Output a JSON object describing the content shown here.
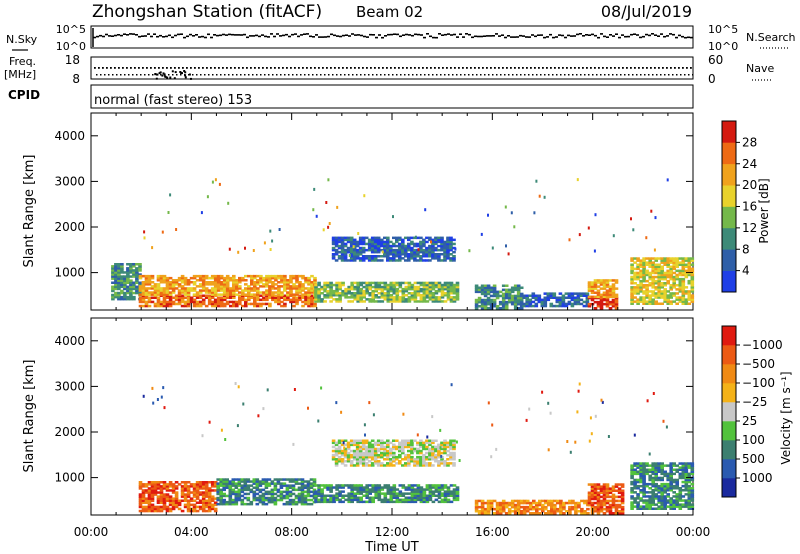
{
  "header": {
    "station": "Zhongshan Station (fitACF)",
    "beam": "Beam 02",
    "date": "08/Jul/2019"
  },
  "status_panels": {
    "nsky_label": "N.Sky",
    "nsky_ticks": [
      "10^5",
      "10^0"
    ],
    "nsearch_label": "N.Search",
    "nsearch_ticks": [
      "10^5",
      "10^0"
    ],
    "freq_label": "Freq.",
    "freq_unit": "[MHz]",
    "freq_ticks": [
      "18",
      "8"
    ],
    "nave_label": "Nave",
    "nave_ticks": [
      "60",
      "0"
    ],
    "cpid_label": "CPID",
    "cpid_text": "normal (fast stereo) 153"
  },
  "chart_data": [
    {
      "type": "heatmap",
      "title": "",
      "xlabel": "",
      "ylabel": "Slant Range [km]",
      "xlim_hours": [
        0,
        24
      ],
      "ylim_km": [
        180,
        4500
      ],
      "yticks": [
        1000,
        2000,
        3000,
        4000
      ],
      "colorbar": {
        "label": "Power [dB]",
        "ticks": [
          "4",
          "8",
          "12",
          "16",
          "20",
          "24",
          "28"
        ],
        "colors": [
          "#1f3fe6",
          "#2f5fa8",
          "#3d8a78",
          "#74b84a",
          "#e8d22c",
          "#f0a21c",
          "#ee6a14",
          "#d41a10"
        ]
      },
      "data_regions": [
        {
          "t0": 0.8,
          "t1": 1.9,
          "r0": 400,
          "r1": 1200,
          "level": 2
        },
        {
          "t0": 1.9,
          "t1": 8.9,
          "r0": 250,
          "r1": 500,
          "level": 6
        },
        {
          "t0": 1.9,
          "t1": 8.9,
          "r0": 500,
          "r1": 950,
          "level": 5
        },
        {
          "t0": 8.9,
          "t1": 14.6,
          "r0": 350,
          "r1": 800,
          "level": 3
        },
        {
          "t0": 9.6,
          "t1": 14.5,
          "r0": 1250,
          "r1": 1750,
          "level": 1
        },
        {
          "t0": 15.3,
          "t1": 17.2,
          "r0": 200,
          "r1": 700,
          "level": 2
        },
        {
          "t0": 17.2,
          "t1": 19.8,
          "r0": 250,
          "r1": 550,
          "level": 1
        },
        {
          "t0": 19.8,
          "t1": 21.0,
          "r0": 200,
          "r1": 450,
          "level": 7
        },
        {
          "t0": 19.8,
          "t1": 21.0,
          "r0": 450,
          "r1": 850,
          "level": 5
        },
        {
          "t0": 21.5,
          "t1": 24.0,
          "r0": 300,
          "r1": 1300,
          "level": 4
        }
      ]
    },
    {
      "type": "heatmap",
      "title": "",
      "xlabel": "Time UT",
      "ylabel": "Slant Range [km]",
      "xlim_hours": [
        0,
        24
      ],
      "ylim_km": [
        180,
        4500
      ],
      "xticks": [
        "00:00",
        "04:00",
        "08:00",
        "12:00",
        "16:00",
        "20:00",
        "00:00"
      ],
      "yticks": [
        1000,
        2000,
        3000,
        4000
      ],
      "colorbar": {
        "label": "Velocity [m s⁻¹]",
        "ticks": [
          "1000",
          "500",
          "100",
          "25",
          "−25",
          "−100",
          "−500",
          "−1000"
        ],
        "colors": [
          "#1a2a9e",
          "#2a5ab0",
          "#3c7f70",
          "#52c23c",
          "#c8c8c8",
          "#f4b218",
          "#f08a14",
          "#ec5a14",
          "#e01a10"
        ]
      },
      "data_regions": [
        {
          "t0": 1.9,
          "t1": 5.0,
          "r0": 250,
          "r1": 900,
          "level": 7
        },
        {
          "t0": 5.0,
          "t1": 8.9,
          "r0": 400,
          "r1": 950,
          "level": 2
        },
        {
          "t0": 8.9,
          "t1": 14.6,
          "r0": 450,
          "r1": 850,
          "level": 2
        },
        {
          "t0": 9.6,
          "t1": 14.5,
          "r0": 1250,
          "r1": 1800,
          "level": 4
        },
        {
          "t0": 15.3,
          "t1": 19.8,
          "r0": 200,
          "r1": 500,
          "level": 6
        },
        {
          "t0": 19.8,
          "t1": 21.2,
          "r0": 200,
          "r1": 850,
          "level": 7
        },
        {
          "t0": 21.5,
          "t1": 24.0,
          "r0": 300,
          "r1": 1300,
          "level": 2
        }
      ]
    }
  ]
}
